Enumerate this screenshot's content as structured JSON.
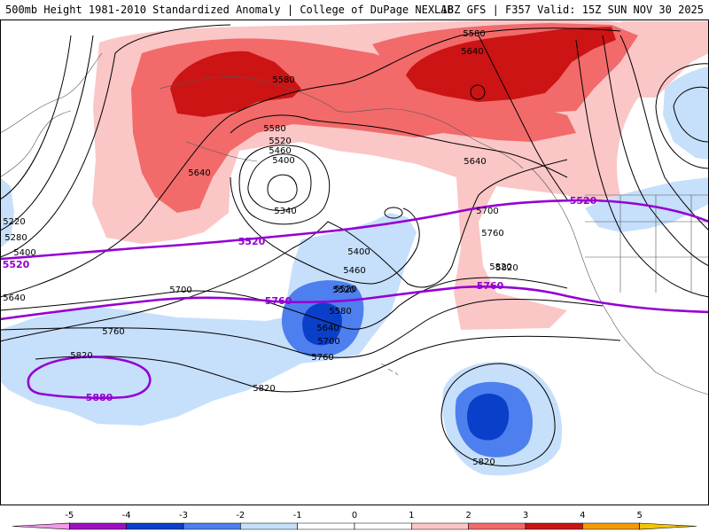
{
  "header": {
    "title_left": "500mb Height 1981-2010 Standardized Anomaly | College of DuPage NEXLAB",
    "title_right": "18Z GFS | F357 Valid: 15Z SUN NOV 30 2025"
  },
  "colors": {
    "neg5": "#f29ae8",
    "neg4": "#9a12c2",
    "neg3": "#0a3fc9",
    "neg2": "#4d7fef",
    "neg1": "#c6dffb",
    "pos1": "#fbc6c6",
    "pos2": "#f26a6a",
    "pos3": "#cc1414",
    "pos4": "#f59a00",
    "pos5": "#f7c400",
    "contour": "#000000",
    "highlight": "#9400d3"
  },
  "height_labels": [
    "5580",
    "5640",
    "5580",
    "5580",
    "5520",
    "5460",
    "5400",
    "5340",
    "5640",
    "5220",
    "5280",
    "5400",
    "5520",
    "5640",
    "5700",
    "5760",
    "5820",
    "5400",
    "5460",
    "5520",
    "5580",
    "5640",
    "5700",
    "5760",
    "5700",
    "5760",
    "5820",
    "5820",
    "5820",
    "5640",
    "5820"
  ],
  "highlight_labels": [
    "5520",
    "5520",
    "5760",
    "5760",
    "5520",
    "5880"
  ],
  "legend": {
    "ticks": [
      "-5",
      "-4",
      "-3",
      "-2",
      "-1",
      "0",
      "1",
      "2",
      "3",
      "4",
      "5"
    ]
  }
}
